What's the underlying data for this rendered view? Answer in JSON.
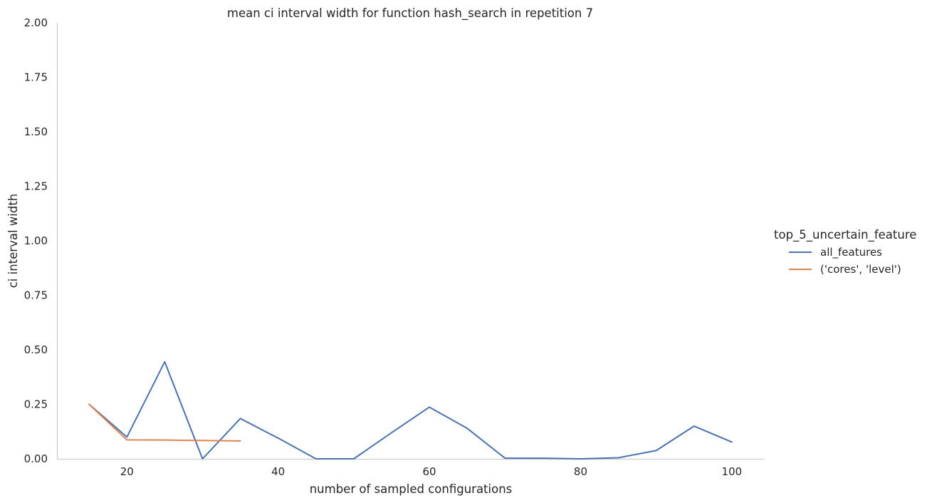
{
  "chart_data": {
    "type": "line",
    "title": "mean ci interval width for function hash_search in repetition 7",
    "xlabel": "number of sampled configurations",
    "ylabel": "ci interval width",
    "xlim": [
      10.75,
      104.25
    ],
    "ylim": [
      0,
      2.0
    ],
    "x_ticks": [
      20,
      40,
      60,
      80,
      100
    ],
    "y_ticks": [
      0.0,
      0.25,
      0.5,
      0.75,
      1.0,
      1.25,
      1.5,
      1.75,
      2.0
    ],
    "x_tick_labels": [
      "20",
      "40",
      "60",
      "80",
      "100"
    ],
    "y_tick_labels": [
      "0.00",
      "0.25",
      "0.50",
      "0.75",
      "1.00",
      "1.25",
      "1.50",
      "1.75",
      "2.00"
    ],
    "grid": false,
    "legend": {
      "title": "top_5_uncertain_feature",
      "placement": "right"
    },
    "series": [
      {
        "name": "all_features",
        "color": "#4c72b0",
        "x": [
          15,
          20,
          25,
          30,
          35,
          40,
          45,
          50,
          55,
          60,
          65,
          70,
          75,
          80,
          85,
          90,
          95,
          100
        ],
        "y": [
          0.25,
          0.1,
          0.445,
          0.0,
          0.185,
          0.095,
          0.0,
          0.0,
          0.12,
          0.237,
          0.14,
          0.003,
          0.003,
          0.0,
          0.005,
          0.038,
          0.15,
          0.077
        ]
      },
      {
        "name": "('cores', 'level')",
        "color": "#dd8452",
        "x": [
          15,
          20,
          25,
          30,
          35
        ],
        "y": [
          0.25,
          0.087,
          0.086,
          0.084,
          0.082
        ]
      }
    ]
  }
}
